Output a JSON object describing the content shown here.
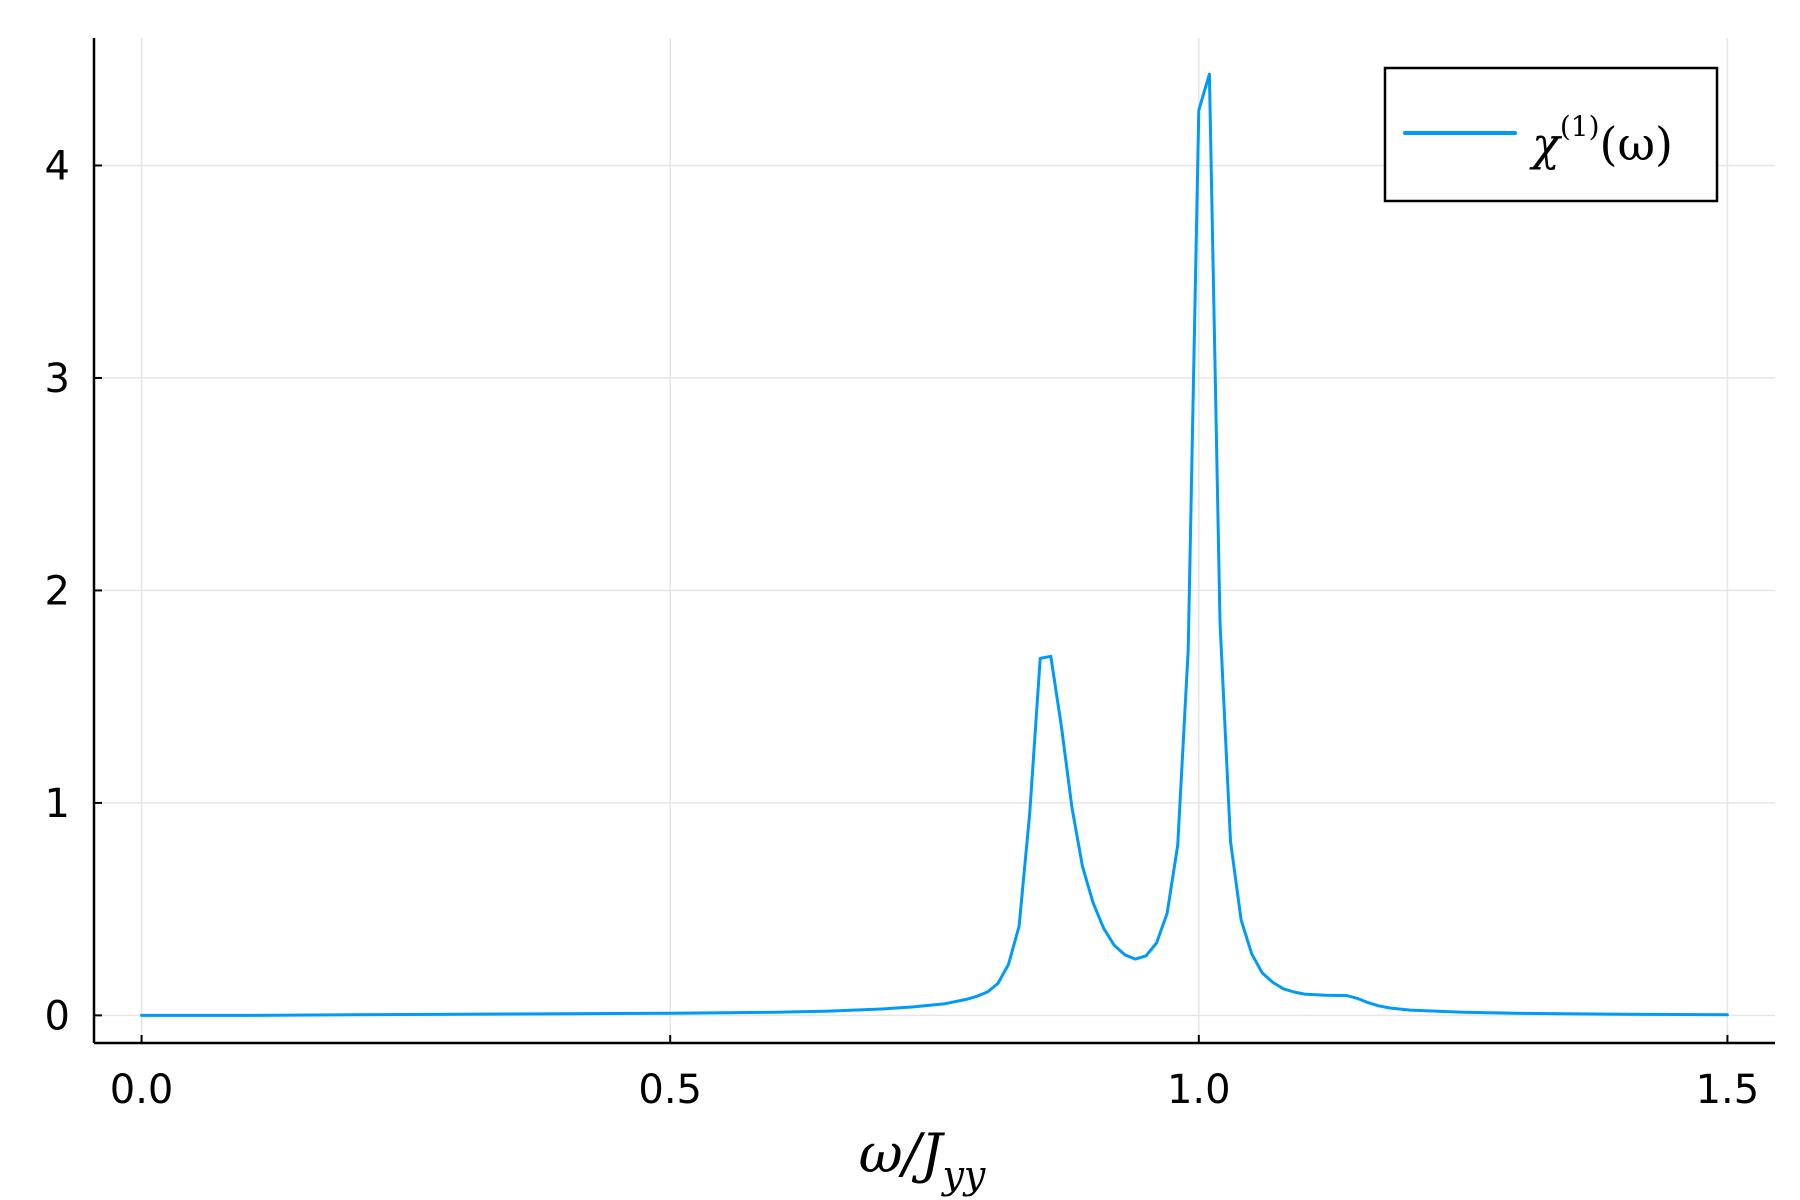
{
  "chart_data": {
    "type": "line",
    "xlabel": {
      "base": "ω/J",
      "sub": "yy"
    },
    "ylabel": "",
    "xlim": [
      -0.045,
      1.545
    ],
    "ylim": [
      -0.13,
      4.6
    ],
    "x_ticks": [
      0.0,
      0.5,
      1.0,
      1.5
    ],
    "x_tick_labels": [
      "0.0",
      "0.5",
      "1.0",
      "1.5"
    ],
    "y_ticks": [
      0,
      1,
      2,
      3,
      4
    ],
    "y_tick_labels": [
      "0",
      "1",
      "2",
      "3",
      "4"
    ],
    "grid": true,
    "legend": {
      "placement": "top-right",
      "entry": {
        "base": "χ",
        "sup": "(1)",
        "arg": "(ω)"
      }
    },
    "series": [
      {
        "color": "#009af9",
        "x": [
          0.0,
          0.1,
          0.2,
          0.3,
          0.4,
          0.5,
          0.55,
          0.6,
          0.65,
          0.7,
          0.73,
          0.76,
          0.78,
          0.79,
          0.8,
          0.81,
          0.82,
          0.83,
          0.84,
          0.85,
          0.86,
          0.87,
          0.88,
          0.89,
          0.9,
          0.91,
          0.92,
          0.93,
          0.94,
          0.95,
          0.96,
          0.97,
          0.98,
          0.99,
          1.0,
          1.01,
          1.02,
          1.03,
          1.04,
          1.05,
          1.06,
          1.07,
          1.08,
          1.09,
          1.1,
          1.12,
          1.14,
          1.15,
          1.16,
          1.17,
          1.18,
          1.2,
          1.25,
          1.3,
          1.4,
          1.5
        ],
        "y": [
          0.0,
          0.0,
          0.003,
          0.005,
          0.008,
          0.01,
          0.012,
          0.015,
          0.02,
          0.03,
          0.04,
          0.055,
          0.075,
          0.09,
          0.11,
          0.15,
          0.24,
          0.42,
          0.95,
          1.68,
          1.69,
          1.36,
          0.98,
          0.7,
          0.53,
          0.41,
          0.33,
          0.285,
          0.265,
          0.28,
          0.34,
          0.48,
          0.8,
          1.72,
          4.26,
          4.43,
          1.85,
          0.82,
          0.45,
          0.29,
          0.2,
          0.155,
          0.125,
          0.11,
          0.1,
          0.095,
          0.093,
          0.08,
          0.06,
          0.045,
          0.035,
          0.025,
          0.015,
          0.01,
          0.005,
          0.003
        ]
      }
    ]
  }
}
